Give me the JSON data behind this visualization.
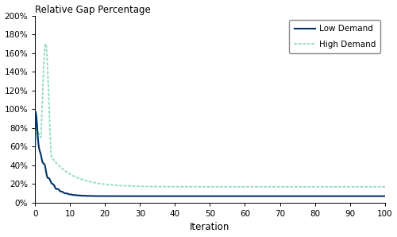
{
  "title": "Relative Gap Percentage",
  "xlabel": "Iteration",
  "xlim": [
    0,
    100
  ],
  "ylim": [
    0,
    2.0
  ],
  "yticks": [
    0,
    0.2,
    0.4,
    0.6,
    0.8,
    1.0,
    1.2,
    1.4,
    1.6,
    1.8,
    2.0
  ],
  "xticks": [
    0,
    10,
    20,
    30,
    40,
    50,
    60,
    70,
    80,
    90,
    100
  ],
  "low_demand_color": "#003366",
  "high_demand_color": "#99DDC8",
  "background_color": "#ffffff",
  "legend_labels": [
    "Low Demand",
    "High Demand"
  ]
}
